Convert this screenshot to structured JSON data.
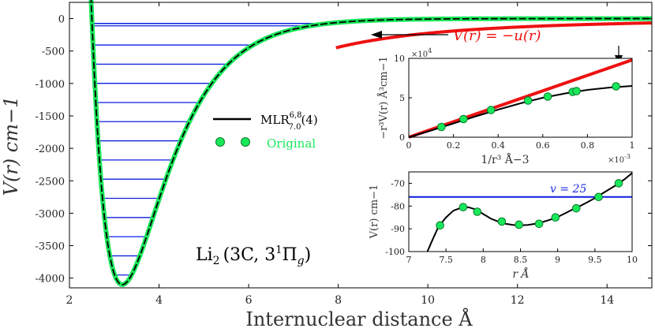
{
  "colors": {
    "mlr": "#000000",
    "original": "#19e85a",
    "original_edge": "#0a7a2a",
    "levels": "#0b1fe0",
    "long_range": "#ee1111",
    "level_label": "#1a2ae0",
    "legend_original": "#19e85a"
  },
  "chart_data": [
    {
      "id": "main",
      "type": "line",
      "title": "",
      "xlabel": "Internuclear distance Å",
      "ylabel": "V(r) cm−1",
      "xlim": [
        2,
        15
      ],
      "ylim": [
        -4150,
        250
      ],
      "xticks": [
        2,
        4,
        6,
        8,
        10,
        12,
        14
      ],
      "xtick_labels": [
        "2",
        "4",
        "6",
        "8",
        "10",
        "12",
        "14"
      ],
      "yticks": [
        0,
        -500,
        -1000,
        -1500,
        -2000,
        -2500,
        -3000,
        -3500,
        -4000
      ],
      "ytick_labels": [
        "0",
        "-500",
        "-1000",
        "-1500",
        "-2000",
        "-2500",
        "-3000",
        "-3500",
        "-4000"
      ],
      "legend": {
        "position": "center",
        "entries": [
          {
            "label_main": "MLR",
            "label_sup": "6,8",
            "label_sub": "7.0",
            "label_tail": "(4)",
            "style": "line",
            "color": "#000000"
          },
          {
            "label": "Original",
            "style": "markers",
            "color": "#19e85a"
          }
        ]
      },
      "annotations": {
        "molecule_label": "Li",
        "molecule_sub": "2",
        "state_label": "(3C, 3",
        "state_sup": "1",
        "state_pi": "Π",
        "state_pi_sub": "g",
        "state_close": ")",
        "long_range_label": "V(r) = −u(r)"
      },
      "potential": {
        "De": 4100,
        "re": 3.18,
        "beta": 1.02
      },
      "vibrational_levels": {
        "count": 26,
        "minimum": -4100,
        "top": -76,
        "spacing_coefficient": 1.96
      }
    },
    {
      "id": "inset_top",
      "type": "line",
      "xlabel": "1/r³ Å−3",
      "ylabel": "−r³V(r) Å³cm−1",
      "xlim": [
        0,
        0.001
      ],
      "ylim": [
        0,
        100000
      ],
      "xticks": [
        0,
        0.0002,
        0.0004,
        0.0006,
        0.0008,
        0.001
      ],
      "xtick_labels": [
        "0",
        "0.2",
        "0.4",
        "0.6",
        "0.8",
        "1"
      ],
      "x_multiplier": "×10",
      "x_multiplier_exp": "-3",
      "yticks": [
        0,
        50000,
        100000
      ],
      "ytick_labels": [
        "0",
        "5",
        "10"
      ],
      "y_multiplier": "×10",
      "y_multiplier_exp": "4",
      "series": [
        {
          "name": "−u(r) long-range",
          "color": "#ee1111",
          "x": [
            0,
            0.001
          ],
          "y": [
            0,
            98000
          ]
        },
        {
          "name": "MLR",
          "color": "#000000",
          "x": [
            0,
            0.0001,
            0.0002,
            0.0003,
            0.0004,
            0.0005,
            0.0006,
            0.0007,
            0.0008,
            0.0009,
            0.001
          ],
          "y": [
            0,
            8500,
            17500,
            26500,
            35000,
            43000,
            50000,
            55500,
            60000,
            63000,
            65000
          ]
        },
        {
          "name": "Original",
          "color": "#19e85a",
          "x": [
            0.000146,
            0.000245,
            0.000368,
            0.000534,
            0.000622,
            0.000734,
            0.000751,
            0.000928
          ],
          "y": [
            13000,
            23000,
            34500,
            46500,
            51500,
            57500,
            58500,
            64500
          ]
        }
      ]
    },
    {
      "id": "inset_bottom",
      "type": "line",
      "xlabel": "r Å",
      "ylabel": "V(r) cm−1",
      "xlim": [
        7,
        10
      ],
      "ylim": [
        -100,
        -65
      ],
      "xticks": [
        7,
        7.5,
        8,
        8.5,
        9,
        9.5,
        10
      ],
      "xtick_labels": [
        "7",
        "7.5",
        "8",
        "8.5",
        "9",
        "9.5",
        "10"
      ],
      "yticks": [
        -70,
        -80,
        -90,
        -100
      ],
      "ytick_labels": [
        "-70",
        "-80",
        "-90",
        "-100"
      ],
      "level_label": "v = 25",
      "level_value": -76,
      "series": [
        {
          "name": "MLR",
          "color": "#000000",
          "x": [
            7.25,
            7.33,
            7.4,
            7.5,
            7.6,
            7.7,
            7.8,
            7.9,
            8.0,
            8.1,
            8.2,
            8.3,
            8.4,
            8.5,
            8.6,
            8.7,
            8.8,
            8.9,
            9.0,
            9.1,
            9.2,
            9.3,
            9.4,
            9.5,
            9.6,
            9.7,
            9.8,
            9.9,
            10.0
          ],
          "y": [
            -100,
            -94,
            -89,
            -85,
            -82,
            -80.8,
            -80.5,
            -81.5,
            -83.5,
            -85.5,
            -86.8,
            -87.8,
            -88.3,
            -88.5,
            -88.3,
            -87.8,
            -87.0,
            -86.0,
            -84.8,
            -83.2,
            -81.5,
            -80.0,
            -78.3,
            -76.5,
            -74.5,
            -72.5,
            -70.5,
            -68.2,
            -65.5
          ]
        },
        {
          "name": "Original",
          "color": "#19e85a",
          "x": [
            7.42,
            7.73,
            7.92,
            8.25,
            8.48,
            8.75,
            8.97,
            9.25,
            9.55,
            9.82
          ],
          "y": [
            -88.5,
            -80.5,
            -82.5,
            -86.8,
            -88.2,
            -87.8,
            -85.0,
            -81.0,
            -76.0,
            -70.0
          ]
        }
      ]
    }
  ]
}
